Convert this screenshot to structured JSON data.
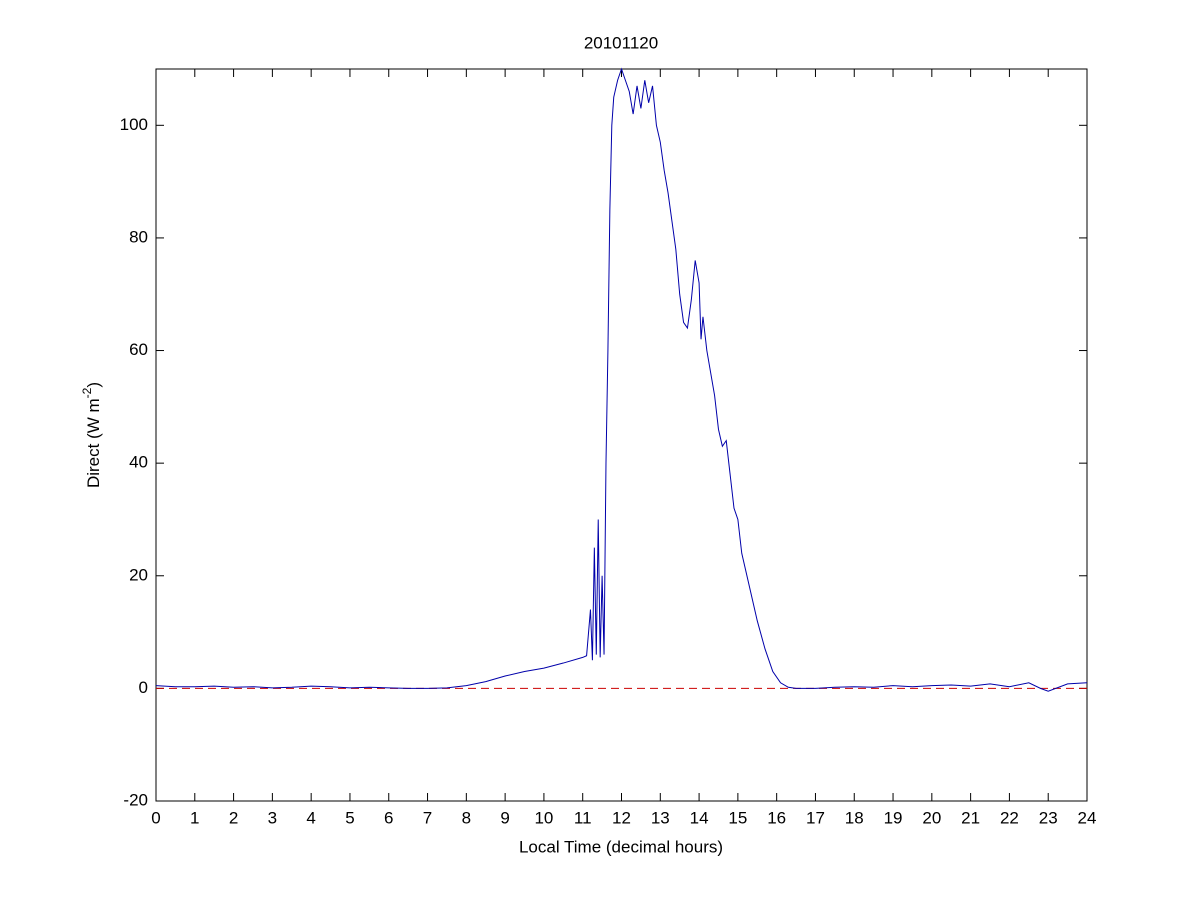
{
  "chart_data": {
    "type": "line",
    "title": "20101120",
    "xlabel": "Local Time (decimal hours)",
    "ylabel": {
      "text": "Direct (W m",
      "superscript": "-2",
      "suffix": ")"
    },
    "x": [
      0,
      0.5,
      1,
      1.5,
      2,
      2.5,
      3,
      3.5,
      4,
      4.5,
      5,
      5.5,
      6,
      6.5,
      7,
      7.5,
      8,
      8.5,
      9,
      9.5,
      10,
      10.5,
      11,
      11.1,
      11.2,
      11.25,
      11.3,
      11.35,
      11.4,
      11.45,
      11.5,
      11.55,
      11.6,
      11.65,
      11.7,
      11.75,
      11.8,
      11.9,
      12,
      12.1,
      12.2,
      12.3,
      12.4,
      12.5,
      12.6,
      12.7,
      12.8,
      12.9,
      13,
      13.1,
      13.2,
      13.3,
      13.4,
      13.5,
      13.6,
      13.7,
      13.8,
      13.9,
      14,
      14.05,
      14.1,
      14.2,
      14.3,
      14.4,
      14.5,
      14.6,
      14.7,
      14.8,
      14.9,
      15,
      15.1,
      15.3,
      15.5,
      15.7,
      15.9,
      16.1,
      16.3,
      16.5,
      17,
      17.5,
      18,
      18.5,
      19,
      19.5,
      20,
      20.5,
      21,
      21.5,
      22,
      22.5,
      22.8,
      23,
      23.5,
      24
    ],
    "series": [
      {
        "name": "Direct",
        "color": "#0000aa",
        "values": [
          0.5,
          0.3,
          0.3,
          0.4,
          0.2,
          0.3,
          0.1,
          0.2,
          0.4,
          0.3,
          0.1,
          0.2,
          0.1,
          0,
          0,
          0.1,
          0.5,
          1.2,
          2.2,
          3,
          3.6,
          4.5,
          5.5,
          5.8,
          14,
          5,
          25,
          6,
          30,
          5.5,
          20,
          6,
          40,
          60,
          85,
          100,
          105,
          108,
          110,
          108,
          106,
          102,
          107,
          103,
          108,
          104,
          107,
          100,
          97,
          92,
          88,
          83,
          78,
          70,
          65,
          64,
          69,
          76,
          72,
          62,
          66,
          60,
          56,
          52,
          46,
          43,
          44,
          38,
          32,
          30,
          24,
          18,
          12,
          7,
          3,
          1,
          0.2,
          0,
          0,
          0.2,
          0.3,
          0.2,
          0.5,
          0.3,
          0.5,
          0.6,
          0.4,
          0.8,
          0.3,
          1,
          0,
          -0.5,
          0.8,
          1
        ]
      }
    ],
    "reference_line": {
      "value": 0,
      "color": "#cc0000"
    },
    "xlim": [
      0,
      24
    ],
    "xticks": [
      0,
      1,
      2,
      3,
      4,
      5,
      6,
      7,
      8,
      9,
      10,
      11,
      12,
      13,
      14,
      15,
      16,
      17,
      18,
      19,
      20,
      21,
      22,
      23,
      24
    ],
    "ylim": [
      -20,
      110
    ],
    "yticks": [
      -20,
      0,
      20,
      40,
      60,
      80,
      100
    ],
    "grid": false
  }
}
